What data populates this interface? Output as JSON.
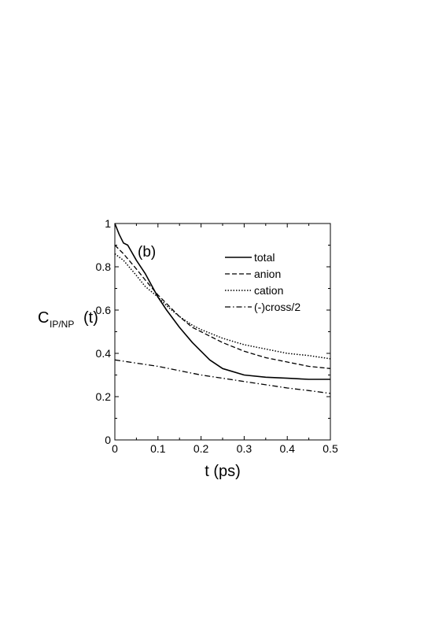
{
  "chart_data": {
    "type": "line",
    "panel_label": "(b)",
    "xlabel": "t (ps)",
    "ylabel": {
      "main": "C",
      "subscript": "IP/NP",
      "suffix": "(t)"
    },
    "xlim": [
      0,
      0.5
    ],
    "ylim": [
      0,
      1
    ],
    "xticks": [
      0,
      0.1,
      0.2,
      0.3,
      0.4,
      0.5
    ],
    "yticks": [
      0,
      0.2,
      0.4,
      0.6,
      0.8,
      1
    ],
    "xtick_labels": [
      "0",
      "0.1",
      "0.2",
      "0.3",
      "0.4",
      "0.5"
    ],
    "ytick_labels": [
      "0",
      "0.2",
      "0.4",
      "0.6",
      "0.8",
      "1"
    ],
    "legend_position": "top-right",
    "series": [
      {
        "name": "total",
        "style": "solid",
        "x": [
          0,
          0.01,
          0.02,
          0.03,
          0.05,
          0.07,
          0.1,
          0.12,
          0.15,
          0.18,
          0.2,
          0.22,
          0.25,
          0.3,
          0.35,
          0.4,
          0.45,
          0.5
        ],
        "y": [
          1.0,
          0.95,
          0.91,
          0.9,
          0.83,
          0.77,
          0.66,
          0.6,
          0.52,
          0.45,
          0.41,
          0.37,
          0.33,
          0.3,
          0.29,
          0.285,
          0.28,
          0.28
        ]
      },
      {
        "name": "anion",
        "style": "dashed",
        "x": [
          0,
          0.02,
          0.05,
          0.07,
          0.1,
          0.12,
          0.15,
          0.18,
          0.2,
          0.25,
          0.3,
          0.35,
          0.4,
          0.45,
          0.5
        ],
        "y": [
          0.9,
          0.86,
          0.79,
          0.74,
          0.67,
          0.63,
          0.57,
          0.52,
          0.5,
          0.45,
          0.41,
          0.38,
          0.36,
          0.34,
          0.33
        ]
      },
      {
        "name": "cation",
        "style": "dotted",
        "x": [
          0,
          0.02,
          0.05,
          0.07,
          0.1,
          0.12,
          0.15,
          0.18,
          0.2,
          0.25,
          0.3,
          0.35,
          0.4,
          0.45,
          0.5
        ],
        "y": [
          0.86,
          0.83,
          0.76,
          0.71,
          0.66,
          0.62,
          0.57,
          0.53,
          0.51,
          0.47,
          0.44,
          0.42,
          0.4,
          0.39,
          0.375
        ]
      },
      {
        "name": "(-)cross/2",
        "style": "dashdot",
        "x": [
          0,
          0.05,
          0.1,
          0.15,
          0.2,
          0.25,
          0.3,
          0.35,
          0.4,
          0.45,
          0.5
        ],
        "y": [
          0.37,
          0.355,
          0.34,
          0.32,
          0.3,
          0.285,
          0.27,
          0.255,
          0.24,
          0.228,
          0.215
        ]
      }
    ]
  }
}
